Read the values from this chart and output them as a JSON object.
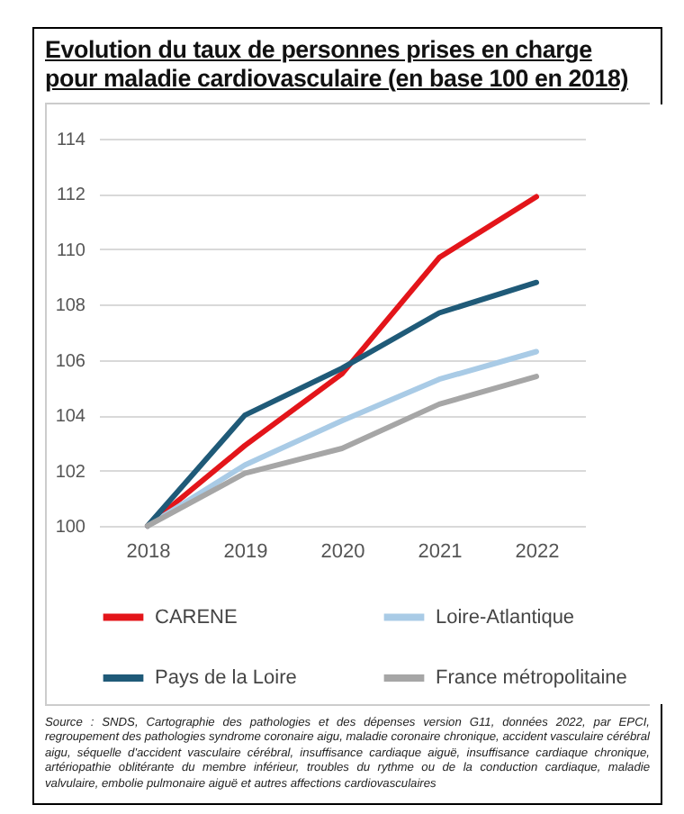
{
  "chart_data": {
    "type": "line",
    "title": "Evolution du taux de personnes prises en charge pour maladie cardiovasculaire (en base 100 en 2018)",
    "categories": [
      "2018",
      "2019",
      "2020",
      "2021",
      "2022"
    ],
    "series": [
      {
        "name": "CARENE",
        "color": "#e3151a",
        "values": [
          100,
          102.9,
          105.5,
          109.7,
          111.9
        ]
      },
      {
        "name": "Loire-Atlantique",
        "color": "#a9cbe6",
        "values": [
          100,
          102.2,
          103.8,
          105.3,
          106.3
        ]
      },
      {
        "name": "Pays de la Loire",
        "color": "#1f5a78",
        "values": [
          100,
          104.0,
          105.7,
          107.7,
          108.8
        ]
      },
      {
        "name": "France métropolitaine",
        "color": "#a6a6a6",
        "values": [
          100,
          101.9,
          102.8,
          104.4,
          105.4
        ]
      }
    ],
    "ylim": [
      100,
      114
    ],
    "yticks": [
      100,
      102,
      104,
      106,
      108,
      110,
      112,
      114
    ],
    "grid": "y",
    "legend": "bottom",
    "marker": "none",
    "line_style": "solid",
    "annotations": [
      "Source : SNDS, Cartographie des pathologies et des dépenses version G11, données 2022, par EPCI, regroupement des pathologies syndrome coronaire aigu, maladie coronaire chronique, accident vasculaire cérébral aigu, séquelle d'accident vasculaire cérébral, insuffisance cardiaque aiguë, insuffisance cardiaque chronique, artériopathie oblitérante du membre inférieur, troubles du rythme ou de la conduction cardiaque, maladie valvulaire, embolie pulmonaire aiguë et autres affections cardiovasculaires"
    ]
  }
}
